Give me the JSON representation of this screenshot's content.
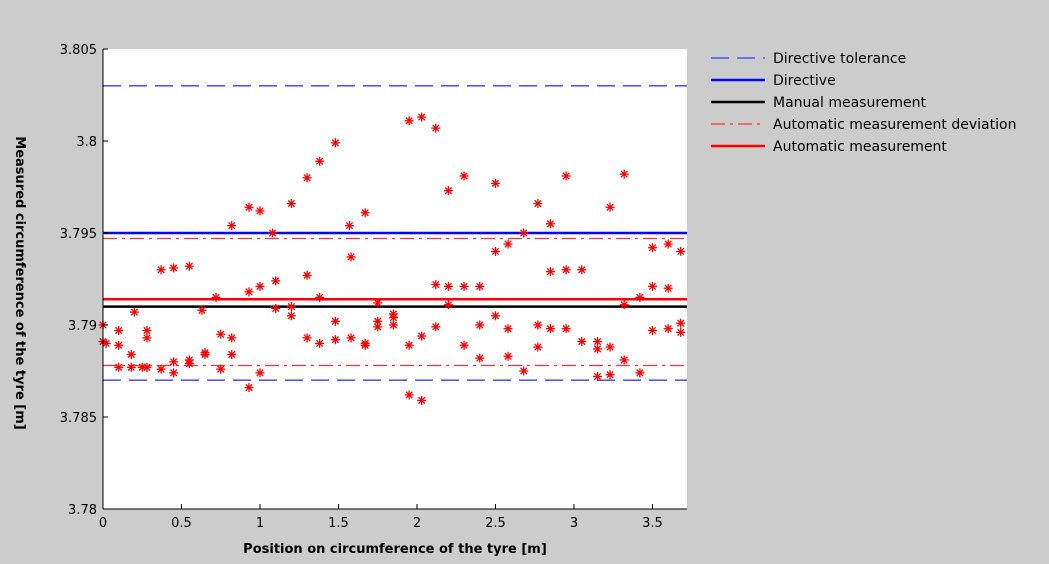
{
  "chart_data": {
    "type": "scatter",
    "xlabel": "Position on circumference of the tyre [m]",
    "ylabel": "Measured circumference of the tyre [m]",
    "xlim": [
      0,
      3.72
    ],
    "ylim": [
      3.78,
      3.805
    ],
    "xticks": [
      0,
      0.5,
      1,
      1.5,
      2,
      2.5,
      3,
      3.5
    ],
    "xtick_labels": [
      "0",
      "0.5",
      "1",
      "1.5",
      "2",
      "2.5",
      "3",
      "3.5"
    ],
    "yticks": [
      3.78,
      3.785,
      3.79,
      3.795,
      3.8,
      3.805
    ],
    "ytick_labels": [
      "3.78",
      "3.785",
      "3.79",
      "3.795",
      "3.8",
      "3.805"
    ],
    "grid": false,
    "legend_position": "outside-top-right",
    "lines": [
      {
        "name": "Directive tolerance",
        "color": "#3a3aff",
        "style": "dashed",
        "y": [
          3.787,
          3.803
        ]
      },
      {
        "name": "Directive",
        "color": "#0000ff",
        "style": "solid",
        "y": [
          3.795
        ]
      },
      {
        "name": "Manual measurement",
        "color": "#000000",
        "style": "solid",
        "y": [
          3.791
        ]
      },
      {
        "name": "Automatic measurement deviation",
        "color": "#ff3333",
        "style": "dashdot",
        "y": [
          3.7878,
          3.7947
        ]
      },
      {
        "name": "Automatic measurement",
        "color": "#ff0000",
        "style": "solid",
        "y": [
          3.7914
        ]
      }
    ],
    "points_color": "#ff0000",
    "points": [
      [
        0.0,
        3.79
      ],
      [
        0.0,
        3.7891
      ],
      [
        0.02,
        3.789
      ],
      [
        0.1,
        3.7897
      ],
      [
        0.1,
        3.7889
      ],
      [
        0.1,
        3.7877
      ],
      [
        0.18,
        3.7884
      ],
      [
        0.18,
        3.7877
      ],
      [
        0.2,
        3.7907
      ],
      [
        0.25,
        3.7877
      ],
      [
        0.28,
        3.7897
      ],
      [
        0.28,
        3.7893
      ],
      [
        0.28,
        3.7877
      ],
      [
        0.37,
        3.793
      ],
      [
        0.37,
        3.7876
      ],
      [
        0.45,
        3.7931
      ],
      [
        0.45,
        3.788
      ],
      [
        0.45,
        3.7874
      ],
      [
        0.55,
        3.7932
      ],
      [
        0.55,
        3.7881
      ],
      [
        0.55,
        3.7879
      ],
      [
        0.63,
        3.7908
      ],
      [
        0.65,
        3.7885
      ],
      [
        0.65,
        3.7884
      ],
      [
        0.72,
        3.7915
      ],
      [
        0.75,
        3.7895
      ],
      [
        0.75,
        3.7876
      ],
      [
        0.82,
        3.7954
      ],
      [
        0.82,
        3.7893
      ],
      [
        0.82,
        3.7884
      ],
      [
        0.93,
        3.7964
      ],
      [
        0.93,
        3.7918
      ],
      [
        0.93,
        3.7866
      ],
      [
        1.0,
        3.7962
      ],
      [
        1.0,
        3.7921
      ],
      [
        1.0,
        3.7874
      ],
      [
        1.08,
        3.795
      ],
      [
        1.1,
        3.7924
      ],
      [
        1.1,
        3.7909
      ],
      [
        1.2,
        3.7966
      ],
      [
        1.2,
        3.791
      ],
      [
        1.2,
        3.7905
      ],
      [
        1.3,
        3.798
      ],
      [
        1.3,
        3.7927
      ],
      [
        1.3,
        3.7893
      ],
      [
        1.38,
        3.7989
      ],
      [
        1.38,
        3.7915
      ],
      [
        1.38,
        3.789
      ],
      [
        1.48,
        3.7999
      ],
      [
        1.48,
        3.7902
      ],
      [
        1.48,
        3.7892
      ],
      [
        1.57,
        3.7954
      ],
      [
        1.58,
        3.7937
      ],
      [
        1.58,
        3.7893
      ],
      [
        1.67,
        3.7961
      ],
      [
        1.67,
        3.789
      ],
      [
        1.67,
        3.7889
      ],
      [
        1.75,
        3.7912
      ],
      [
        1.75,
        3.7902
      ],
      [
        1.75,
        3.7899
      ],
      [
        1.85,
        3.7906
      ],
      [
        1.85,
        3.7904
      ],
      [
        1.85,
        3.79
      ],
      [
        1.95,
        3.8011
      ],
      [
        1.95,
        3.7889
      ],
      [
        1.95,
        3.7862
      ],
      [
        2.03,
        3.8013
      ],
      [
        2.03,
        3.7894
      ],
      [
        2.03,
        3.7859
      ],
      [
        2.12,
        3.8007
      ],
      [
        2.12,
        3.7922
      ],
      [
        2.12,
        3.7899
      ],
      [
        2.2,
        3.7973
      ],
      [
        2.2,
        3.7921
      ],
      [
        2.2,
        3.7911
      ],
      [
        2.3,
        3.7981
      ],
      [
        2.3,
        3.7921
      ],
      [
        2.3,
        3.7889
      ],
      [
        2.4,
        3.7921
      ],
      [
        2.4,
        3.79
      ],
      [
        2.4,
        3.7882
      ],
      [
        2.5,
        3.7977
      ],
      [
        2.5,
        3.794
      ],
      [
        2.5,
        3.7905
      ],
      [
        2.58,
        3.7944
      ],
      [
        2.58,
        3.7898
      ],
      [
        2.58,
        3.7883
      ],
      [
        2.68,
        3.795
      ],
      [
        2.68,
        3.7875
      ],
      [
        2.77,
        3.7966
      ],
      [
        2.77,
        3.79
      ],
      [
        2.77,
        3.7888
      ],
      [
        2.85,
        3.7955
      ],
      [
        2.85,
        3.7929
      ],
      [
        2.85,
        3.7898
      ],
      [
        2.95,
        3.7981
      ],
      [
        2.95,
        3.793
      ],
      [
        2.95,
        3.7898
      ],
      [
        3.05,
        3.793
      ],
      [
        3.05,
        3.7891
      ],
      [
        3.15,
        3.7891
      ],
      [
        3.15,
        3.7887
      ],
      [
        3.15,
        3.7872
      ],
      [
        3.23,
        3.7964
      ],
      [
        3.23,
        3.7888
      ],
      [
        3.23,
        3.7873
      ],
      [
        3.32,
        3.7982
      ],
      [
        3.32,
        3.7911
      ],
      [
        3.32,
        3.7881
      ],
      [
        3.42,
        3.7915
      ],
      [
        3.42,
        3.7874
      ],
      [
        3.5,
        3.7942
      ],
      [
        3.5,
        3.7921
      ],
      [
        3.5,
        3.7897
      ],
      [
        3.6,
        3.7944
      ],
      [
        3.6,
        3.792
      ],
      [
        3.6,
        3.7898
      ],
      [
        3.68,
        3.794
      ],
      [
        3.68,
        3.7901
      ],
      [
        3.68,
        3.7896
      ]
    ]
  }
}
